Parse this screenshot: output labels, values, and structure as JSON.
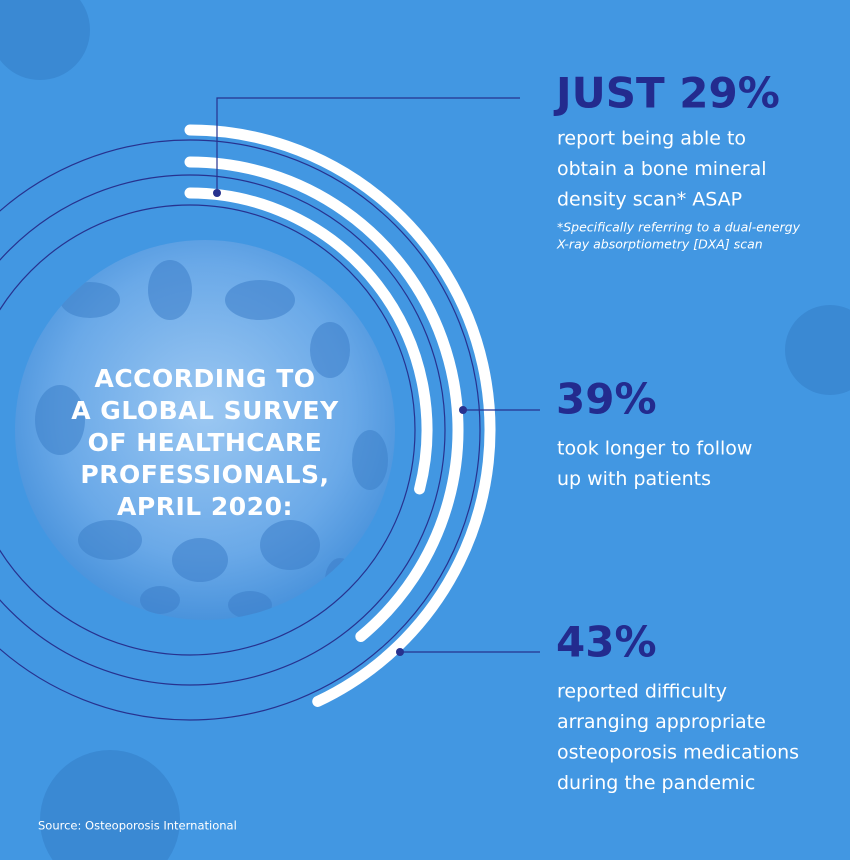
{
  "chart_data": {
    "type": "radial_bar",
    "title_lines": [
      "ACCORDING TO",
      "A GLOBAL SURVEY",
      "OF HEALTHCARE",
      "PROFESSIONALS,",
      "APRIL 2020:"
    ],
    "values": [
      29,
      39,
      43
    ],
    "value_labels": [
      "JUST 29%",
      "39%",
      "43%"
    ],
    "descriptions": [
      [
        "report being able to",
        "obtain a bone mineral",
        "density scan* ASAP"
      ],
      [
        "took longer to follow",
        "up with patients"
      ],
      [
        "reported difficulty",
        "arranging appropriate",
        "osteoporosis medications",
        "during the pandemic"
      ]
    ],
    "note_lines": [
      "*Specifically referring to a dual-energy",
      "X-ray absorptiometry [DXA] scan"
    ],
    "source": "Source: Osteoporosis International",
    "color": "#ffffff"
  }
}
